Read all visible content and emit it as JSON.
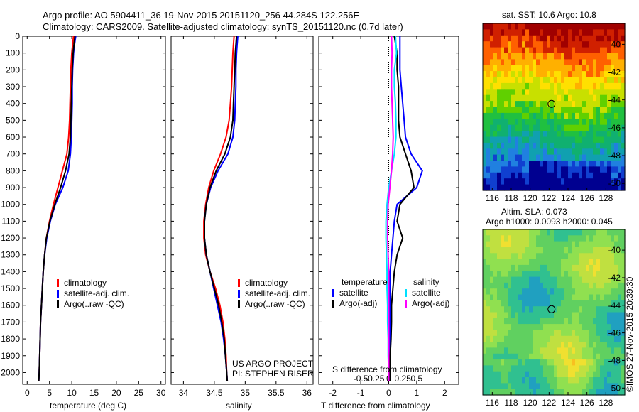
{
  "titles": {
    "line1": "Argo profile: AO 5904411_36 19-Nov-2015 20151120_256 44.284S 122.256E",
    "line2": "Climatology: CARS2009. Satellite-adjusted climatology: synTS_20151120.nc (0.7d later)"
  },
  "colors": {
    "climatology": "#ff0000",
    "satellite": "#0000ff",
    "argo": "#000000",
    "sat_salinity": "#00e0ff",
    "argo_salinity": "#ff00ff"
  },
  "legend_temp": {
    "items": [
      "climatology",
      "satellite-adj. clim.",
      "Argo(..raw -QC)"
    ]
  },
  "legend_sal": {
    "items": [
      "climatology",
      "satellite-adj. clim.",
      "Argo(..raw -QC)"
    ]
  },
  "legend_diff": {
    "temperature": "temperature",
    "salinity": "salinity",
    "temp_items": [
      "satellite",
      "Argo(-adj)"
    ],
    "sal_items": [
      "satellite",
      "Argo(-adj)"
    ]
  },
  "project": {
    "line1": "US ARGO PROJECT",
    "line2": "PI: STEPHEN RISER"
  },
  "map_sst": {
    "title": "sat. SST: 10.6 Argo: 10.8"
  },
  "map_sla": {
    "title1": "Altim. SLA: 0.073",
    "title2": "Argo h1000: 0.0093 h2000: 0.045"
  },
  "credit": "©IMOS 27-Nov-2015 20:39:30",
  "chart_data": [
    {
      "type": "line",
      "xlabel": "temperature (deg C)",
      "ylabel": "",
      "xlim": [
        -1,
        31
      ],
      "ylim": [
        2070,
        0
      ],
      "xticks": [
        0,
        5,
        10,
        15,
        20,
        25,
        30
      ],
      "yticks": [
        0,
        100,
        200,
        300,
        400,
        500,
        600,
        700,
        800,
        900,
        1000,
        1100,
        1200,
        1300,
        1400,
        1500,
        1600,
        1700,
        1800,
        1900,
        2000
      ],
      "series": [
        {
          "name": "climatology",
          "depth": [
            0,
            50,
            100,
            200,
            300,
            400,
            500,
            600,
            700,
            800,
            900,
            1000,
            1100,
            1200,
            1300,
            1400,
            1500,
            1600,
            1700,
            1800,
            1900,
            2000,
            2050
          ],
          "values": [
            10.4,
            10.2,
            10.0,
            9.8,
            9.7,
            9.6,
            9.5,
            9.3,
            8.9,
            7.9,
            6.9,
            5.9,
            5.0,
            4.3,
            3.9,
            3.6,
            3.4,
            3.2,
            3.0,
            2.9,
            2.8,
            2.7,
            2.6
          ]
        },
        {
          "name": "satellite-adj. clim.",
          "depth": [
            0,
            50,
            100,
            200,
            300,
            400,
            500,
            600,
            700,
            800,
            900,
            1000,
            1100,
            1200,
            1300,
            1400,
            1500,
            1600,
            1700,
            1800,
            1900,
            2000,
            2050
          ],
          "values": [
            10.9,
            10.6,
            10.4,
            10.2,
            10.1,
            10.1,
            10.0,
            9.9,
            9.7,
            9.2,
            8.0,
            6.3,
            5.2,
            4.4,
            3.9,
            3.6,
            3.4,
            3.2,
            3.0,
            2.9,
            2.8,
            2.7,
            2.6
          ]
        },
        {
          "name": "Argo(..raw -QC)",
          "depth": [
            0,
            50,
            100,
            200,
            300,
            400,
            500,
            600,
            700,
            800,
            900,
            1000,
            1100,
            1200,
            1300,
            1400,
            1500,
            1600,
            1700,
            1800,
            1900,
            2000,
            2050
          ],
          "values": [
            10.7,
            10.5,
            10.3,
            10.1,
            10.0,
            9.9,
            9.8,
            9.7,
            9.4,
            8.6,
            7.5,
            6.2,
            5.1,
            4.3,
            3.9,
            3.6,
            3.4,
            3.2,
            3.0,
            2.9,
            2.8,
            2.7,
            2.6
          ]
        }
      ]
    },
    {
      "type": "line",
      "xlabel": "salinity",
      "ylabel": "",
      "xlim": [
        33.8,
        36.1
      ],
      "ylim": [
        2070,
        0
      ],
      "xticks": [
        34,
        34.5,
        35,
        35.5,
        36
      ],
      "series": [
        {
          "name": "climatology",
          "depth": [
            0,
            50,
            100,
            200,
            300,
            400,
            500,
            600,
            700,
            800,
            900,
            1000,
            1100,
            1200,
            1300,
            1400,
            1500,
            1600,
            1700,
            1800,
            1900,
            2000,
            2050
          ],
          "values": [
            34.82,
            34.81,
            34.8,
            34.79,
            34.78,
            34.76,
            34.74,
            34.69,
            34.6,
            34.49,
            34.41,
            34.36,
            34.33,
            34.33,
            34.36,
            34.43,
            34.52,
            34.59,
            34.64,
            34.67,
            34.69,
            34.7,
            34.71
          ]
        },
        {
          "name": "satellite-adj. clim.",
          "depth": [
            0,
            50,
            100,
            200,
            300,
            400,
            500,
            600,
            700,
            800,
            900,
            1000,
            1100,
            1200,
            1300,
            1400,
            1500,
            1600,
            1700,
            1800,
            1900,
            2000,
            2050
          ],
          "values": [
            34.88,
            34.87,
            34.86,
            34.85,
            34.85,
            34.84,
            34.83,
            34.8,
            34.72,
            34.56,
            34.44,
            34.37,
            34.34,
            34.34,
            34.37,
            34.43,
            34.49,
            34.55,
            34.61,
            34.65,
            34.68,
            34.7,
            34.71
          ]
        },
        {
          "name": "Argo(..raw -QC)",
          "depth": [
            0,
            50,
            100,
            200,
            300,
            400,
            500,
            600,
            700,
            800,
            900,
            1000,
            1100,
            1200,
            1300,
            1400,
            1500,
            1600,
            1700,
            1800,
            1900,
            2000,
            2050
          ],
          "values": [
            34.86,
            34.85,
            34.84,
            34.83,
            34.82,
            34.81,
            34.8,
            34.76,
            34.67,
            34.53,
            34.43,
            34.37,
            34.34,
            34.34,
            34.37,
            34.43,
            34.5,
            34.57,
            34.62,
            34.66,
            34.68,
            34.7,
            34.71
          ]
        }
      ]
    },
    {
      "type": "line",
      "xlabel": "T difference from climatology",
      "xlabel2": "S difference from climatology",
      "xlim": [
        -2.5,
        2.5
      ],
      "ylim": [
        2070,
        0
      ],
      "xticks": [
        -2,
        -1,
        0,
        1,
        2
      ],
      "xticks_S": [
        -0.5,
        -0.25,
        0,
        0.25,
        0.5
      ],
      "series": [
        {
          "name": "temperature satellite",
          "depth": [
            0,
            100,
            200,
            300,
            400,
            500,
            600,
            700,
            800,
            900,
            1000,
            1100,
            1200,
            1300,
            1400,
            1500,
            1600,
            1700,
            1800,
            1900,
            2000,
            2050
          ],
          "values": [
            0.4,
            0.4,
            0.4,
            0.45,
            0.5,
            0.55,
            0.6,
            0.8,
            1.2,
            1.0,
            0.3,
            0.2,
            0.15,
            0.1,
            0.05,
            0.05,
            0.05,
            0.05,
            0.05,
            0.05,
            0.05,
            0.05
          ]
        },
        {
          "name": "temperature Argo(-adj)",
          "depth": [
            0,
            100,
            200,
            300,
            400,
            500,
            600,
            700,
            800,
            900,
            1000,
            1100,
            1200,
            1300,
            1400,
            1500,
            1600,
            1700,
            1800,
            1900,
            2000,
            2050
          ],
          "values": [
            0.2,
            0.3,
            0.3,
            0.35,
            0.35,
            0.35,
            0.4,
            0.6,
            0.8,
            0.9,
            0.4,
            0.3,
            0.5,
            0.3,
            0.2,
            0.15,
            0.1,
            0.1,
            0.08,
            0.05,
            0.05,
            0.05
          ]
        },
        {
          "name": "salinity satellite",
          "depth": [
            0,
            100,
            200,
            300,
            400,
            500,
            600,
            700,
            800,
            900,
            1000,
            1100,
            1200,
            1300,
            1400,
            1500,
            1600,
            1700,
            1800,
            1900,
            2000,
            2050
          ],
          "values": [
            0.12,
            0.14,
            0.1,
            0.1,
            0.12,
            0.13,
            0.13,
            0.1,
            0.05,
            0.0,
            -0.03,
            -0.05,
            -0.05,
            -0.04,
            -0.03,
            -0.03,
            -0.02,
            -0.02,
            -0.01,
            -0.01,
            0.0,
            0.0
          ]
        },
        {
          "name": "salinity Argo(-adj)",
          "depth": [
            0,
            100,
            200,
            300,
            400,
            500,
            600,
            700,
            800,
            900,
            1000,
            1100,
            1200,
            1300,
            1400,
            1500,
            1600,
            1700,
            1800,
            1900,
            2000,
            2050
          ],
          "values": [
            0.05,
            0.06,
            0.05,
            0.05,
            0.06,
            0.07,
            0.08,
            0.07,
            0.05,
            0.02,
            -0.01,
            -0.02,
            -0.02,
            -0.01,
            0.0,
            0.0,
            0.0,
            0.0,
            0.0,
            0.0,
            0.0,
            0.0
          ]
        }
      ]
    },
    {
      "type": "heatmap",
      "title": "sat. SST: 10.6 Argo: 10.8",
      "xlim": [
        115,
        130
      ],
      "ylim": [
        -50.5,
        -38.5
      ],
      "xticks": [
        116,
        118,
        120,
        122,
        124,
        126,
        128
      ],
      "yticks": [
        -40,
        -42,
        -44,
        -46,
        -48,
        -50
      ],
      "marker": {
        "lon": 122.256,
        "lat": -44.284
      }
    },
    {
      "type": "heatmap",
      "title": "Altim. SLA: 0.073",
      "xlim": [
        115,
        130
      ],
      "ylim": [
        -50.5,
        -38.5
      ],
      "xticks": [
        116,
        118,
        120,
        122,
        124,
        126,
        128
      ],
      "yticks": [
        -40,
        -42,
        -44,
        -46,
        -48,
        -50
      ],
      "marker": {
        "lon": 122.256,
        "lat": -44.284
      }
    }
  ]
}
